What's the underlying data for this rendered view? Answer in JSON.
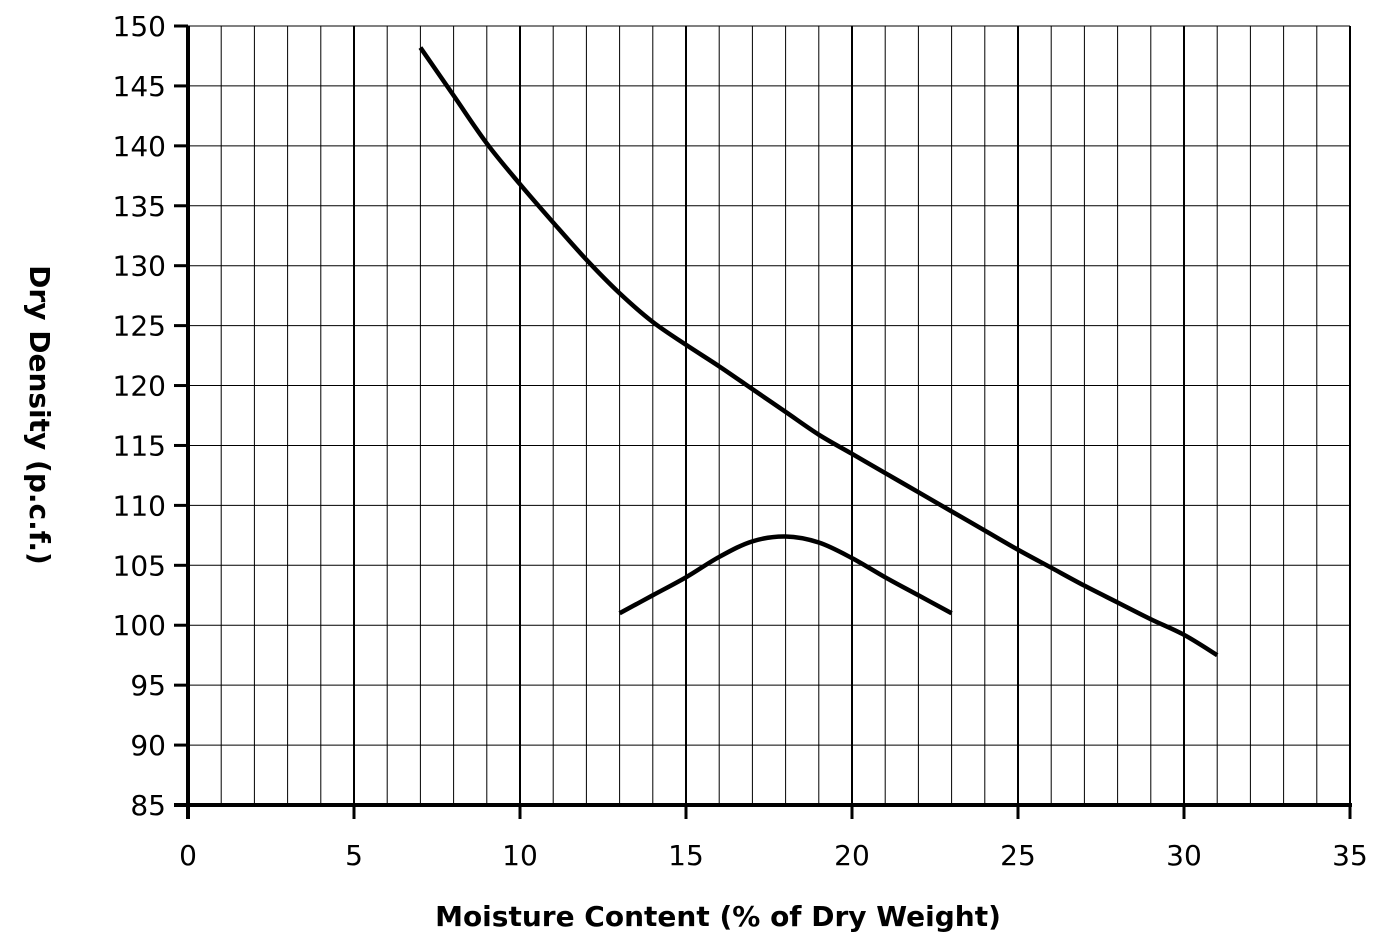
{
  "chart_data": {
    "type": "line",
    "title": "",
    "xlabel": "Moisture Content (% of Dry Weight)",
    "ylabel": "Dry Density (p.c.f.)",
    "xlim": [
      0,
      35
    ],
    "ylim": [
      85,
      150
    ],
    "x_ticks": [
      0,
      5,
      10,
      15,
      20,
      25,
      30,
      35
    ],
    "y_ticks": [
      85,
      90,
      95,
      100,
      105,
      110,
      115,
      120,
      125,
      130,
      135,
      140,
      145,
      150
    ],
    "x_minor_step": 1,
    "grid": true,
    "legend": "none",
    "series": [
      {
        "x": [
          7,
          8,
          9,
          10,
          11,
          12,
          13,
          14,
          15,
          16,
          17,
          18,
          19,
          20,
          21,
          22,
          23,
          24,
          25,
          26,
          27,
          28,
          29,
          30,
          31
        ],
        "y": [
          148.2,
          144.2,
          140.2,
          136.8,
          133.6,
          130.5,
          127.7,
          125.3,
          123.4,
          121.6,
          119.7,
          117.8,
          115.9,
          114.3,
          112.7,
          111.1,
          109.5,
          107.9,
          106.3,
          104.8,
          103.3,
          101.9,
          100.5,
          99.2,
          97.5
        ]
      },
      {
        "x": [
          13,
          14,
          15,
          16,
          17,
          18,
          19,
          20,
          21,
          22,
          23
        ],
        "y": [
          101.0,
          102.5,
          104.0,
          105.7,
          107.0,
          107.4,
          106.9,
          105.6,
          104.0,
          102.5,
          101.0
        ]
      }
    ]
  }
}
